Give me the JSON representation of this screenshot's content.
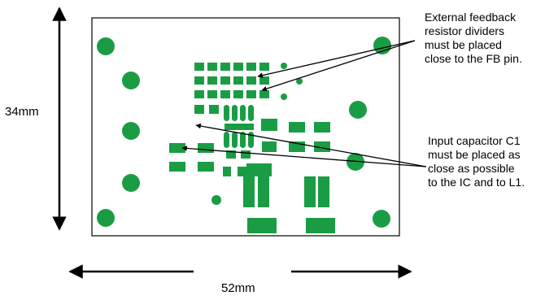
{
  "dimensions": {
    "height_label": "34mm",
    "width_label": "52mm"
  },
  "callouts": {
    "feedback": {
      "lines": [
        "External feedback",
        "resistor dividers",
        "must be placed",
        "close to the FB pin."
      ]
    },
    "capacitor": {
      "lines": [
        "Input capacitor C1",
        "must be placed as",
        "close as possible",
        "to the IC and to L1."
      ]
    }
  },
  "colors": {
    "copper": "#1a9c45",
    "board_outline": "#000000",
    "arrow": "#000000"
  }
}
